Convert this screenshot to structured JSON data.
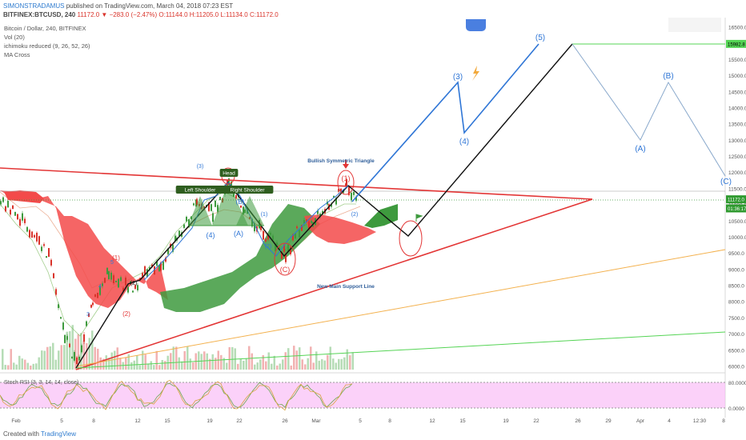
{
  "header": {
    "author": "SIMONSTRADAMUS",
    "published": "published on TradingView.com, March 04, 2018 07:23 EST",
    "symbol": "BITFINEX:BTCUSD, 240",
    "ohlc": "11172.0 ▼ −283.0 (−2.47%) O:11144.0 H:11205.0 L:11134.0 C:11172.0"
  },
  "legend": {
    "title": "Bitcoin / Dollar, 240, BITFINEX",
    "vol": "Vol (20)",
    "ichimoku": "ichimoku reduced (9, 26, 52, 26)",
    "ma": "MA Cross"
  },
  "rsi": {
    "label": "Stoch RSI (3, 3, 14, 14, close)",
    "ticks": [
      "80.0000",
      "0.0000"
    ]
  },
  "footer": {
    "created_with": "Created with",
    "brand": "TradingView"
  },
  "chart_data": {
    "type": "candlestick",
    "instrument": "BITFINEX:BTCUSD",
    "timeframe": "240",
    "y_ticks": [
      16500,
      16000,
      15500,
      15000,
      14500,
      14000,
      13500,
      13000,
      12500,
      12000,
      11500,
      11000,
      10500,
      10000,
      9500,
      9000,
      8500,
      8000,
      7500,
      7000,
      6500,
      6000
    ],
    "y_price_labels": [
      "15982.8",
      "11172.0",
      "01:36:17"
    ],
    "x_ticks": [
      "Feb",
      "5",
      "8",
      "12",
      "15",
      "19",
      "22",
      "26",
      "Mar",
      "5",
      "8",
      "12",
      "15",
      "19",
      "22",
      "26",
      "29",
      "Apr",
      "4",
      "12:30",
      "8"
    ],
    "annotations": {
      "patterns": [
        "Left Shoulder",
        "Head",
        "Right Shoulder"
      ],
      "triangle": "Bullish Symmetric Triangle",
      "support": "New Main Support Line",
      "waves": [
        "(1)",
        "(2)",
        "(1)",
        "(2)",
        "(3)",
        "(4)",
        "(5)",
        "(A)",
        "(B)",
        "(C)",
        "(2)",
        "(3)",
        "(4)",
        "(A)",
        "(B)",
        "(C)",
        "(1)",
        "(2)",
        "4",
        "5",
        "3"
      ]
    },
    "projection": {
      "waves": [
        "(3)",
        "(4)",
        "(5)",
        "(A)",
        "(B)",
        "(C)"
      ],
      "values": [
        14800,
        13200,
        16300,
        16000,
        12900,
        14700,
        11500
      ]
    }
  }
}
